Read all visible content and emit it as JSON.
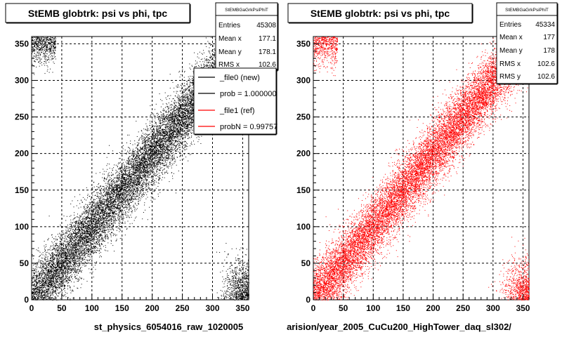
{
  "chart_data": [
    {
      "type": "scatter",
      "title": "StEMB globtrk: psi vs phi, tpc",
      "xlabel": "st_physics_6054016_raw_1020005",
      "ylabel": "",
      "xlim": [
        0,
        360
      ],
      "ylim": [
        0,
        360
      ],
      "x_ticks": [
        "0",
        "50",
        "100",
        "150",
        "200",
        "250",
        "300",
        "350"
      ],
      "y_ticks": [
        "0",
        "50",
        "100",
        "150",
        "200",
        "250",
        "300",
        "350"
      ],
      "grid": true,
      "marker_color": "#000000",
      "stats": {
        "name": "StEMBGaGrkPsiPhiT",
        "rows": [
          {
            "label": "Entries",
            "value": "45308"
          },
          {
            "label": "Mean x",
            "value": "177.1"
          },
          {
            "label": "Mean y",
            "value": "178.1"
          },
          {
            "label": "RMS x",
            "value": "102.6"
          }
        ]
      },
      "legend": {
        "placement": "top-right",
        "entries": [
          {
            "label": "_file0 (new)",
            "color": "#000000"
          },
          {
            "label": "prob = 1.000000",
            "color": "#000000"
          },
          {
            "label": "_file1 (ref)",
            "color": "#ff0000"
          },
          {
            "label": "probN = 0.99757",
            "color": "#ff0000"
          }
        ]
      }
    },
    {
      "type": "scatter",
      "title": "StEMB globtrk: psi vs phi, tpc",
      "xlabel": "arision/year_2005_CuCu200_HighTower_daq_sl302/",
      "ylabel": "",
      "xlim": [
        0,
        360
      ],
      "ylim": [
        0,
        360
      ],
      "x_ticks": [
        "0",
        "50",
        "100",
        "150",
        "200",
        "250",
        "300",
        "350"
      ],
      "y_ticks": [
        "0",
        "50",
        "100",
        "150",
        "200",
        "250",
        "300",
        "350"
      ],
      "grid": true,
      "marker_color": "#ff0000",
      "stats": {
        "name": "StEMBGaGrkPsiPhiT",
        "rows": [
          {
            "label": "Entries",
            "value": "45334"
          },
          {
            "label": "Mean x",
            "value": "177"
          },
          {
            "label": "Mean y",
            "value": "178"
          },
          {
            "label": "RMS x",
            "value": "102.6"
          },
          {
            "label": "RMS y",
            "value": "102.6"
          }
        ]
      }
    }
  ]
}
